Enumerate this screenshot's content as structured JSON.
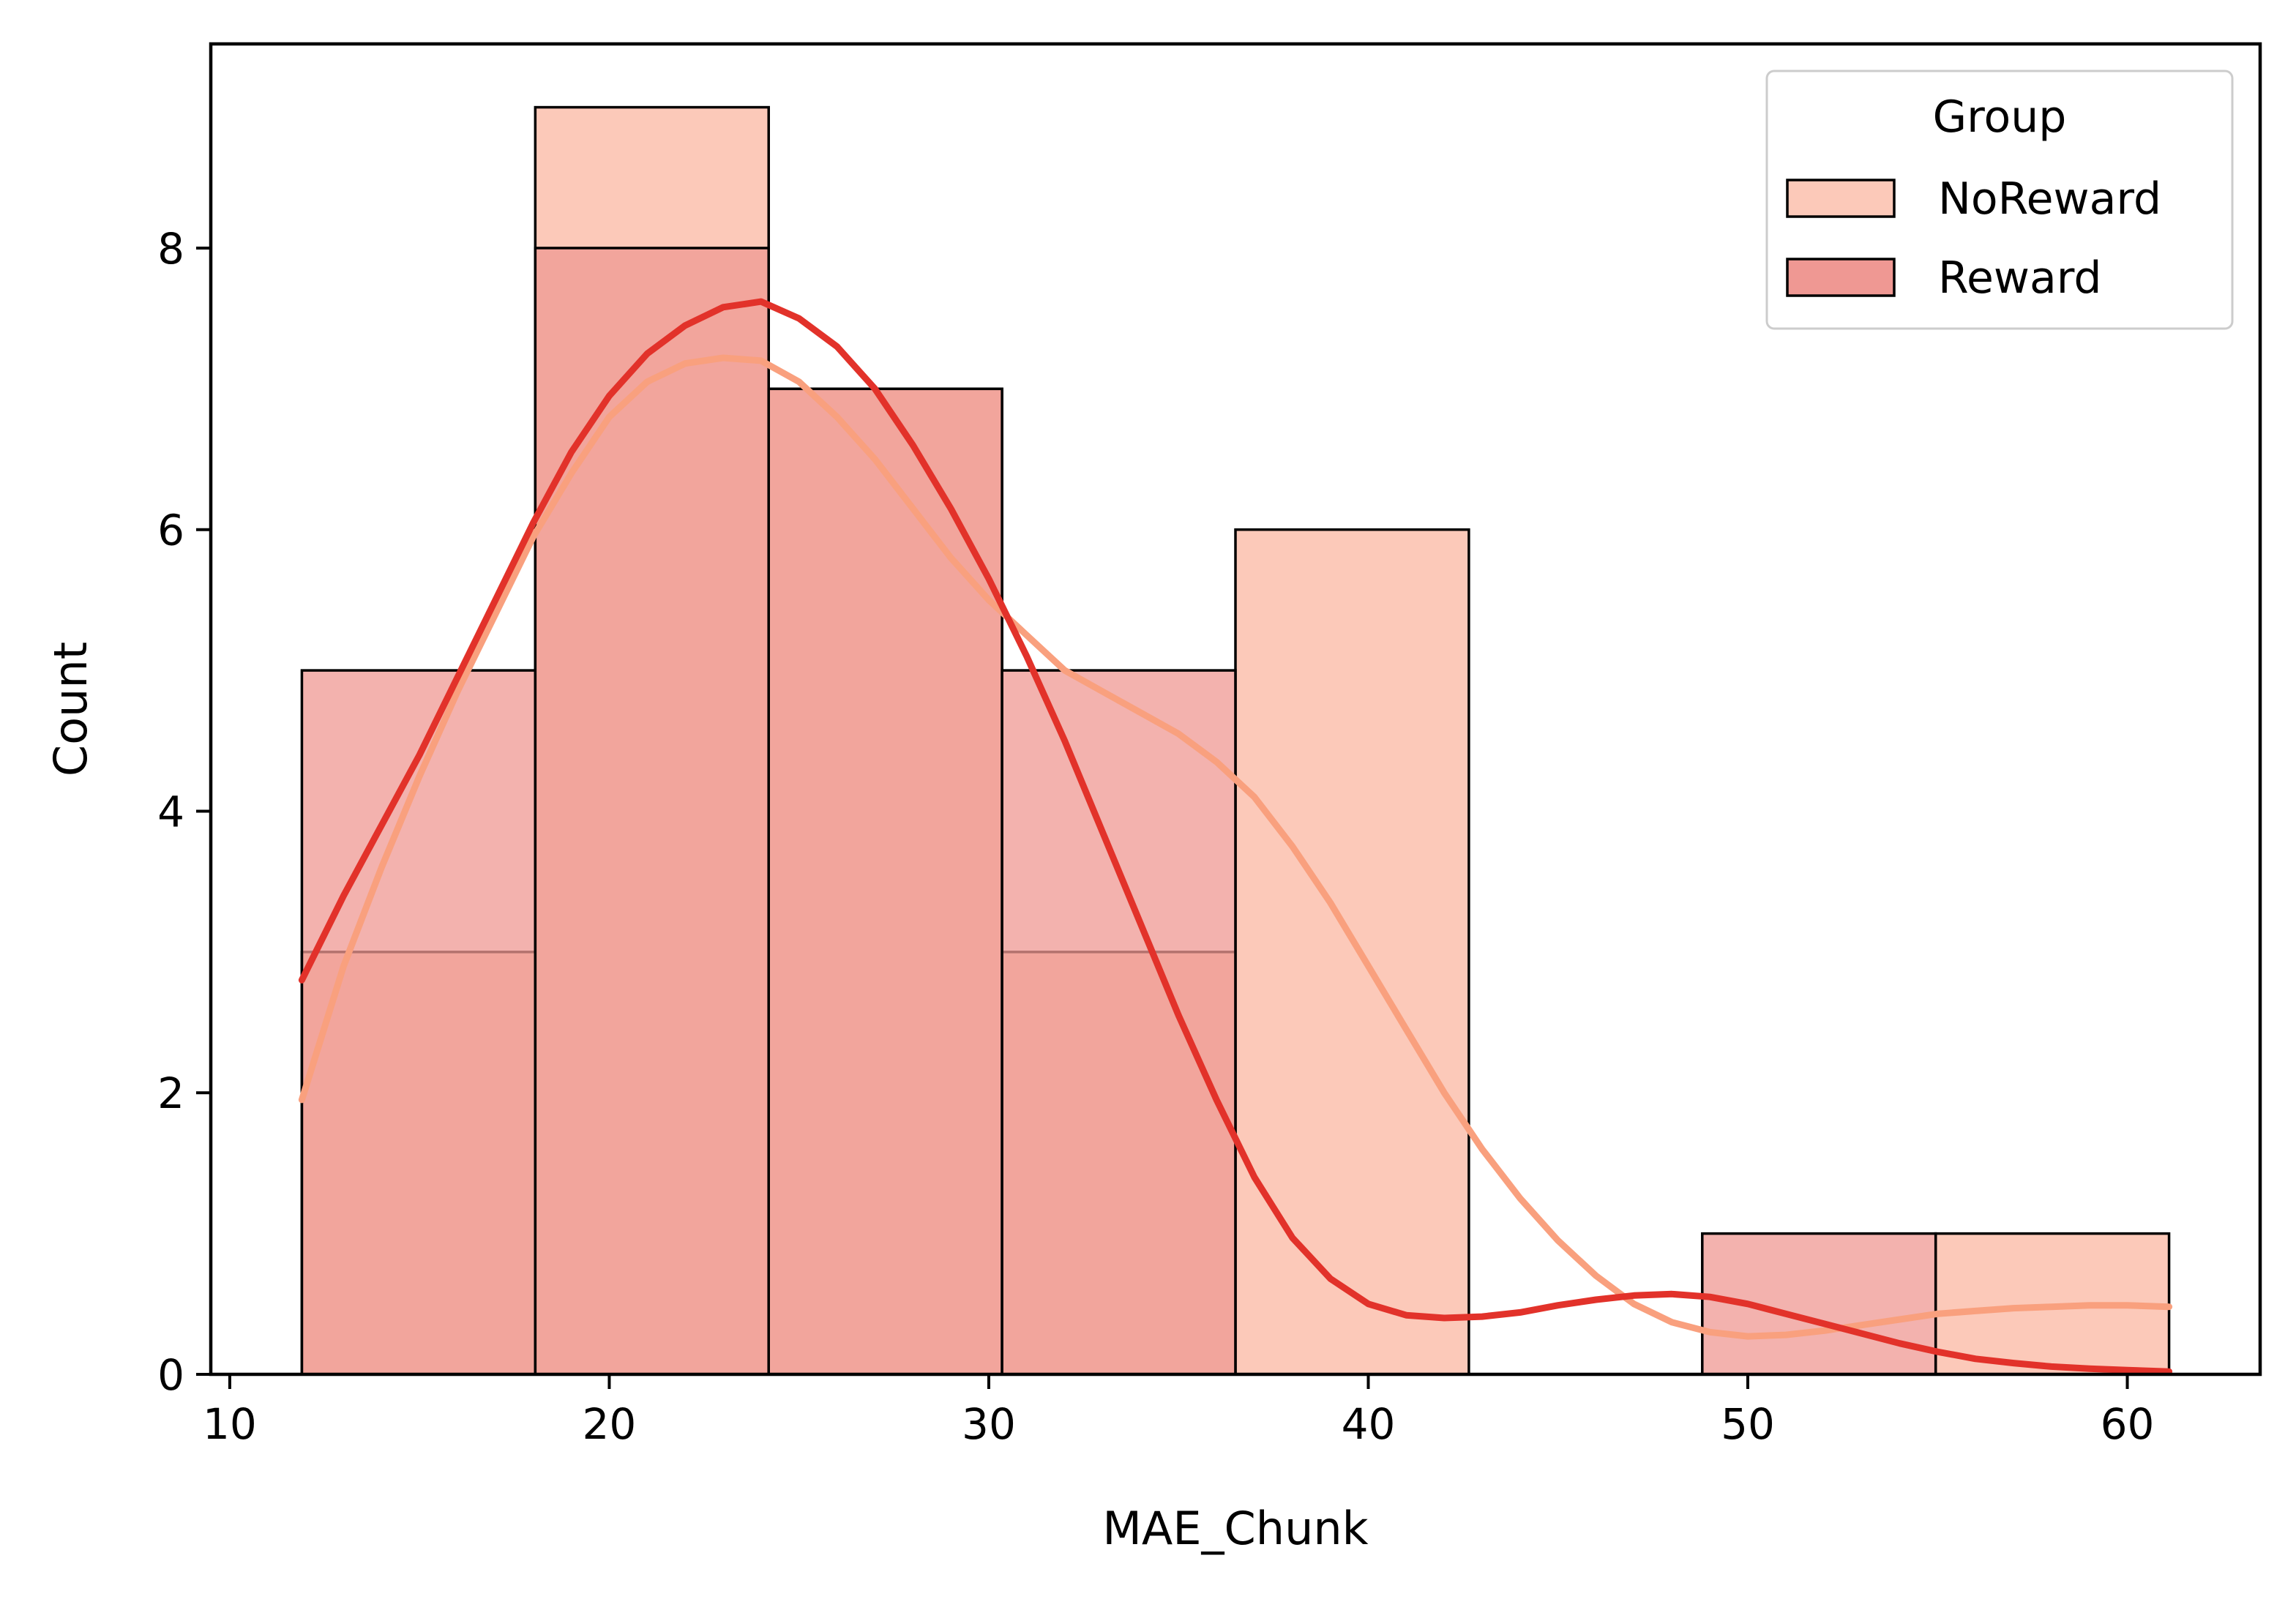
{
  "chart_data": {
    "type": "histogram",
    "xlabel": "MAE_Chunk",
    "ylabel": "Count",
    "xlim": [
      9.5,
      63.5
    ],
    "ylim": [
      0,
      9.45
    ],
    "xticks": [
      10,
      20,
      30,
      40,
      50,
      60
    ],
    "yticks": [
      0,
      2,
      4,
      6,
      8
    ],
    "bin_edges": [
      11.9,
      18.05,
      24.2,
      30.35,
      36.5,
      42.65,
      48.8,
      54.95,
      61.1
    ],
    "legend": {
      "title": "Group",
      "position": "upper right"
    },
    "series": [
      {
        "name": "NoReward",
        "fill": "#fcc9b9",
        "line_color": "#f9a07e",
        "counts": [
          3,
          9,
          7,
          3,
          6,
          0,
          0,
          1
        ],
        "kde": {
          "x": [
            11.9,
            13,
            14,
            15,
            16,
            17,
            18,
            19,
            20,
            21,
            22,
            23,
            24,
            25,
            26,
            27,
            28,
            29,
            30,
            31,
            32,
            33,
            34,
            35,
            36,
            37,
            38,
            39,
            40,
            41,
            42,
            43,
            44,
            45,
            46,
            47,
            48,
            49,
            50,
            51,
            52,
            53,
            54,
            55,
            56,
            57,
            58,
            59,
            60,
            61.1
          ],
          "y": [
            1.95,
            2.9,
            3.6,
            4.25,
            4.85,
            5.4,
            5.95,
            6.4,
            6.8,
            7.05,
            7.18,
            7.22,
            7.2,
            7.05,
            6.8,
            6.5,
            6.15,
            5.8,
            5.5,
            5.25,
            5.0,
            4.85,
            4.7,
            4.55,
            4.35,
            4.1,
            3.75,
            3.35,
            2.9,
            2.45,
            2.0,
            1.6,
            1.25,
            0.95,
            0.7,
            0.5,
            0.37,
            0.3,
            0.27,
            0.28,
            0.31,
            0.35,
            0.39,
            0.43,
            0.45,
            0.47,
            0.48,
            0.49,
            0.49,
            0.48
          ]
        }
      },
      {
        "name": "Reward",
        "fill": "#ef9893",
        "line_color": "#e2322a",
        "counts": [
          5,
          8,
          7,
          5,
          0,
          0,
          1,
          0
        ],
        "kde": {
          "x": [
            11.9,
            13,
            14,
            15,
            16,
            17,
            18,
            19,
            20,
            21,
            22,
            23,
            24,
            25,
            26,
            27,
            28,
            29,
            30,
            31,
            32,
            33,
            34,
            35,
            36,
            37,
            38,
            39,
            40,
            41,
            42,
            43,
            44,
            45,
            46,
            47,
            48,
            49,
            50,
            51,
            52,
            53,
            54,
            55,
            56,
            57,
            58,
            59,
            60,
            61.1
          ],
          "y": [
            2.8,
            3.4,
            3.9,
            4.4,
            4.95,
            5.5,
            6.05,
            6.55,
            6.95,
            7.25,
            7.45,
            7.58,
            7.62,
            7.5,
            7.3,
            7.0,
            6.6,
            6.15,
            5.65,
            5.1,
            4.5,
            3.85,
            3.2,
            2.55,
            1.95,
            1.4,
            0.97,
            0.68,
            0.5,
            0.42,
            0.4,
            0.41,
            0.44,
            0.49,
            0.53,
            0.56,
            0.57,
            0.55,
            0.5,
            0.43,
            0.36,
            0.29,
            0.22,
            0.16,
            0.11,
            0.08,
            0.055,
            0.04,
            0.03,
            0.02
          ]
        }
      }
    ]
  }
}
